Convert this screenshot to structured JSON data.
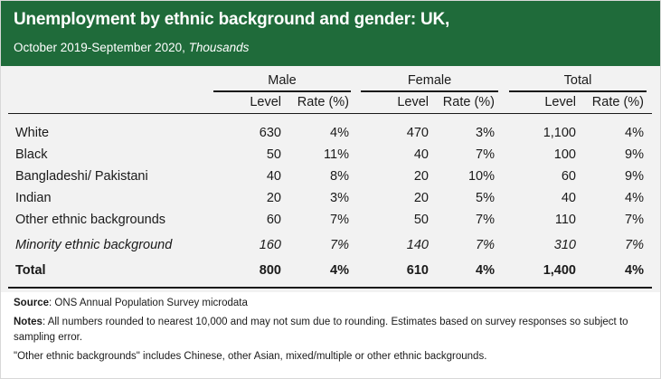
{
  "header": {
    "title": "Unemployment by ethnic background and gender: UK,",
    "subtitle_period": "October 2019-September 2020, ",
    "subtitle_unit": "Thousands"
  },
  "chart_data": {
    "type": "table",
    "groups": [
      "Male",
      "Female",
      "Total"
    ],
    "subcolumns": [
      "Level",
      "Rate (%)"
    ],
    "rows": [
      {
        "label": "White",
        "style": "normal",
        "values": [
          "630",
          "4%",
          "470",
          "3%",
          "1,100",
          "4%"
        ]
      },
      {
        "label": "Black",
        "style": "normal",
        "values": [
          "50",
          "11%",
          "40",
          "7%",
          "100",
          "9%"
        ]
      },
      {
        "label": "Bangladeshi/ Pakistani",
        "style": "normal",
        "values": [
          "40",
          "8%",
          "20",
          "10%",
          "60",
          "9%"
        ]
      },
      {
        "label": "Indian",
        "style": "normal",
        "values": [
          "20",
          "3%",
          "20",
          "5%",
          "40",
          "4%"
        ]
      },
      {
        "label": "Other ethnic backgrounds",
        "style": "normal",
        "values": [
          "60",
          "7%",
          "50",
          "7%",
          "110",
          "7%"
        ]
      },
      {
        "label": "Minority ethnic background",
        "style": "italic",
        "values": [
          "160",
          "7%",
          "140",
          "7%",
          "310",
          "7%"
        ]
      },
      {
        "label": "Total",
        "style": "bold",
        "values": [
          "800",
          "4%",
          "610",
          "4%",
          "1,400",
          "4%"
        ]
      }
    ]
  },
  "notes": {
    "source_label": "Source",
    "source_text": ": ONS Annual Population Survey microdata",
    "notes_label": "Notes",
    "notes_text": ": All numbers rounded to nearest 10,000 and may not sum due to rounding. Estimates based on survey responses so subject to sampling error.",
    "other_text": "\"Other ethnic backgrounds\" includes Chinese, other Asian, mixed/multiple or other ethnic backgrounds."
  }
}
